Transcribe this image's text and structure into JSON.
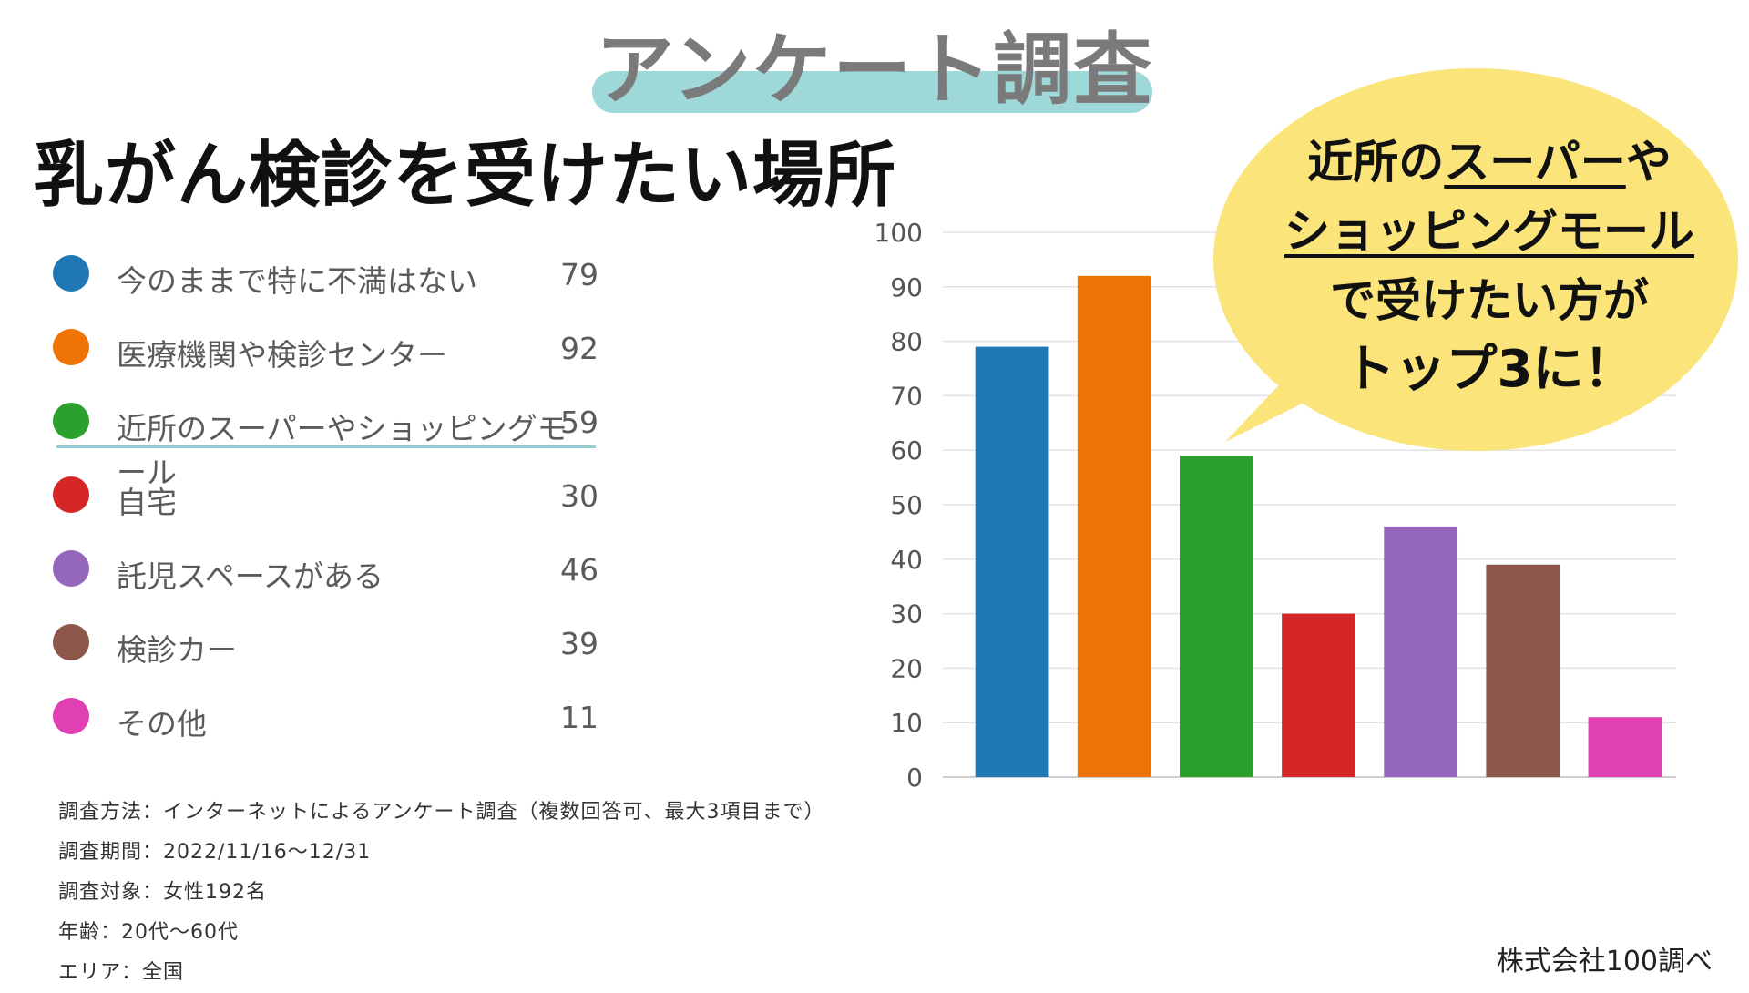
{
  "header": {
    "title": "アンケート調査"
  },
  "page_title": "乳がん検診を受けたい場所",
  "colors": {
    "header_band": "#9ed8d9",
    "bubble_fill": "#fbe47a",
    "highlight_line": "#8fcdd0"
  },
  "chart_data": {
    "type": "bar",
    "categories": [
      "今のままで特に不満はない",
      "医療機関や検診センター",
      "近所のスーパーやショッピングモール",
      "自宅",
      "託児スペースがある",
      "検診カー",
      "その他"
    ],
    "values": [
      79,
      92,
      59,
      30,
      46,
      39,
      11
    ],
    "colors": [
      "#1f77b4",
      "#ef7204",
      "#2ca02c",
      "#d62728",
      "#9467bd",
      "#8c564b",
      "#e040b4"
    ],
    "ylim": [
      0,
      100
    ],
    "yticks": [
      0,
      10,
      20,
      30,
      40,
      50,
      60,
      70,
      80,
      90,
      100
    ],
    "grid": true,
    "legend": "left",
    "highlighted_category": "近所のスーパーやショッピングモール"
  },
  "callout": {
    "line1_prefix": "近所の",
    "line1_underlined": "スーパー",
    "line1_suffix": "や",
    "line2_underlined": "ショッピングモール",
    "line3": "で受けたい方が",
    "line4": "トップ3に！"
  },
  "survey_method": [
    "調査方法：インターネットによるアンケート調査（複数回答可、最大3項目まで）",
    "調査期間：2022/11/16～12/31",
    "調査対象：女性192名",
    "年齢：20代～60代",
    "エリア：全国"
  ],
  "credit": "株式会社100調べ"
}
